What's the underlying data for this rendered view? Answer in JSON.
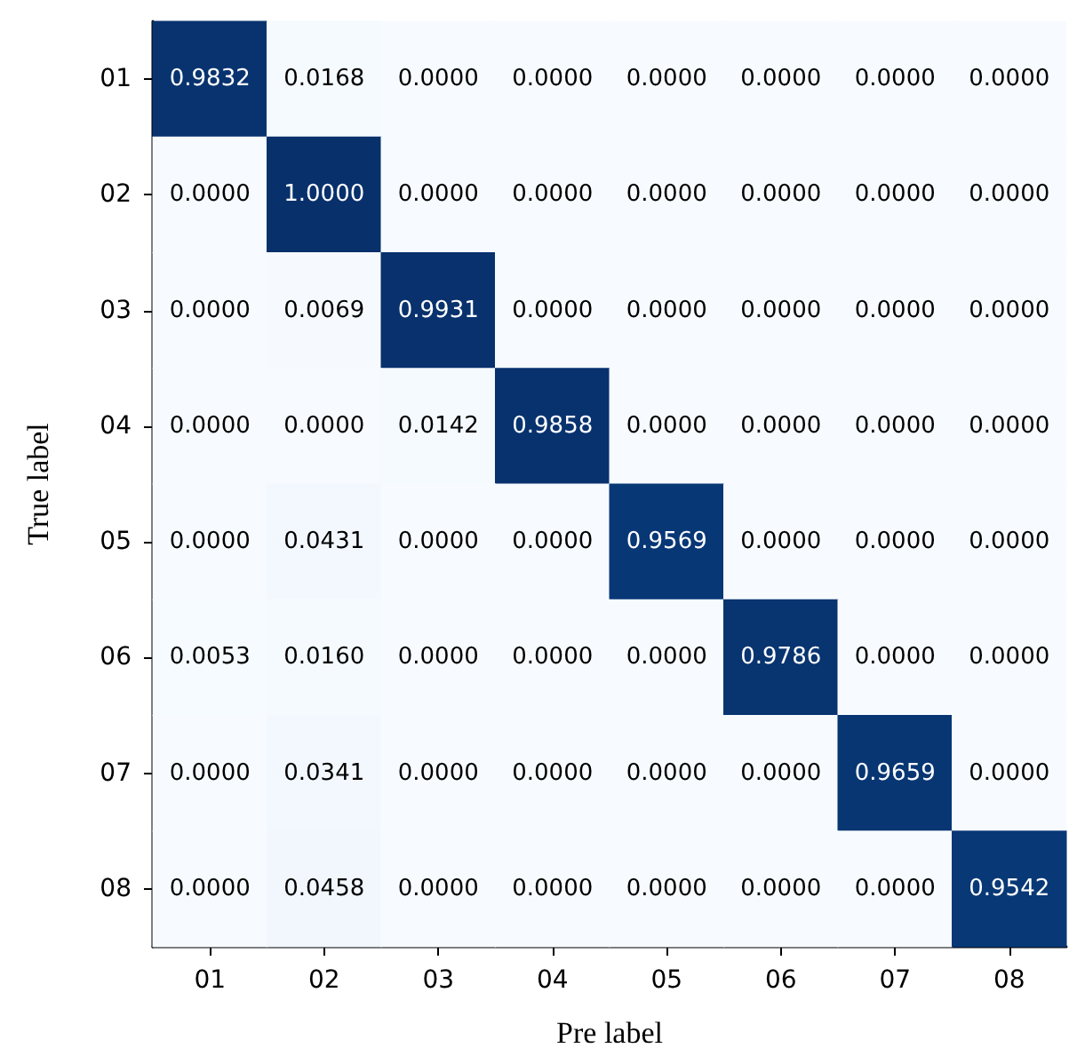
{
  "chart_data": {
    "type": "heatmap",
    "xlabel": "Pre label",
    "ylabel": "True label",
    "categories": [
      "01",
      "02",
      "03",
      "04",
      "05",
      "06",
      "07",
      "08"
    ],
    "y_categories": [
      "01",
      "02",
      "03",
      "04",
      "05",
      "06",
      "07",
      "08"
    ],
    "cells": [
      [
        0.9832,
        0.0168,
        0,
        0,
        0,
        0,
        0,
        0
      ],
      [
        0,
        1.0,
        0,
        0,
        0,
        0,
        0,
        0
      ],
      [
        0,
        0.0069,
        0.9931,
        0,
        0,
        0,
        0,
        0
      ],
      [
        0,
        0,
        0.0142,
        0.9858,
        0,
        0,
        0,
        0
      ],
      [
        0,
        0.0431,
        0,
        0,
        0.9569,
        0,
        0,
        0
      ],
      [
        0.0053,
        0.016,
        0,
        0,
        0,
        0.9786,
        0,
        0
      ],
      [
        0,
        0.0341,
        0,
        0,
        0,
        0,
        0.9659,
        0
      ],
      [
        0,
        0.0458,
        0,
        0,
        0,
        0,
        0,
        0.9542
      ]
    ],
    "cell_labels": [
      [
        "0.9832",
        "0.0168",
        "0.0000",
        "0.0000",
        "0.0000",
        "0.0000",
        "0.0000",
        "0.0000"
      ],
      [
        "0.0000",
        "1.0000",
        "0.0000",
        "0.0000",
        "0.0000",
        "0.0000",
        "0.0000",
        "0.0000"
      ],
      [
        "0.0000",
        "0.0069",
        "0.9931",
        "0.0000",
        "0.0000",
        "0.0000",
        "0.0000",
        "0.0000"
      ],
      [
        "0.0000",
        "0.0000",
        "0.0142",
        "0.9858",
        "0.0000",
        "0.0000",
        "0.0000",
        "0.0000"
      ],
      [
        "0.0000",
        "0.0431",
        "0.0000",
        "0.0000",
        "0.9569",
        "0.0000",
        "0.0000",
        "0.0000"
      ],
      [
        "0.0053",
        "0.0160",
        "0.0000",
        "0.0000",
        "0.0000",
        "0.9786",
        "0.0000",
        "0.0000"
      ],
      [
        "0.0000",
        "0.0341",
        "0.0000",
        "0.0000",
        "0.0000",
        "0.0000",
        "0.9659",
        "0.0000"
      ],
      [
        "0.0000",
        "0.0458",
        "0.0000",
        "0.0000",
        "0.0000",
        "0.0000",
        "0.0000",
        "0.9542"
      ]
    ]
  }
}
